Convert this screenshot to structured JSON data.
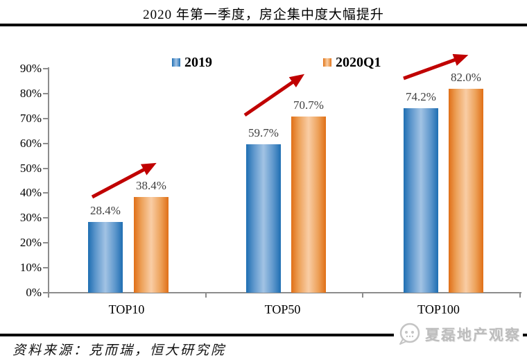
{
  "title": "2020 年第一季度，房企集中度大幅提升",
  "source_note": "资料来源：克而瑞，恒大研究院",
  "watermark_text": "夏磊地产观察",
  "chart_data": {
    "type": "bar",
    "title": "2020 年第一季度，房企集中度大幅提升",
    "categories": [
      "TOP10",
      "TOP50",
      "TOP100"
    ],
    "series": [
      {
        "name": "2019",
        "values": [
          28.4,
          59.7,
          74.2
        ],
        "labels": [
          "28.4%",
          "59.7%",
          "74.2%"
        ],
        "color": "#2E75B6"
      },
      {
        "name": "2020Q1",
        "values": [
          38.4,
          70.7,
          82.0
        ],
        "labels": [
          "38.4%",
          "70.7%",
          "82.0%"
        ],
        "color": "#ED7D31"
      }
    ],
    "ylim": [
      0,
      90
    ],
    "yticks": [
      {
        "value": 0,
        "label": "0%"
      },
      {
        "value": 10,
        "label": "10%"
      },
      {
        "value": 20,
        "label": "20%"
      },
      {
        "value": 30,
        "label": "30%"
      },
      {
        "value": 40,
        "label": "40%"
      },
      {
        "value": 50,
        "label": "50%"
      },
      {
        "value": 60,
        "label": "60%"
      },
      {
        "value": 70,
        "label": "70%"
      },
      {
        "value": 80,
        "label": "80%"
      },
      {
        "value": 90,
        "label": "90%"
      }
    ],
    "xlabel": "",
    "ylabel": "",
    "grid": false,
    "legend_position": "top",
    "annotations": [
      {
        "type": "arrow",
        "category": "TOP10",
        "direction": "up-right",
        "color": "#C00000"
      },
      {
        "type": "arrow",
        "category": "TOP50",
        "direction": "up-right",
        "color": "#C00000"
      },
      {
        "type": "arrow",
        "category": "TOP100",
        "direction": "up-right",
        "color": "#C00000"
      }
    ]
  },
  "colors": {
    "bar_2019": "#2E75B6",
    "bar_2020q1": "#ED7D31",
    "arrow": "#C00000",
    "axis": "#8C8C8C",
    "value_label": "#3F3F3F",
    "watermark": "#BDBDBD"
  }
}
